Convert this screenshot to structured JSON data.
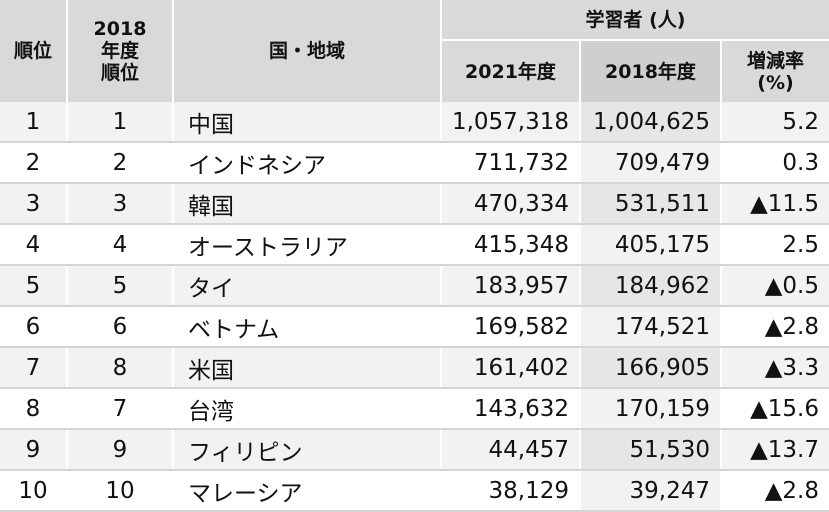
{
  "header": {
    "rank": "順位",
    "rank_2018_line1": "2018",
    "rank_2018_line2": "年度",
    "rank_2018_line3": "順位",
    "country": "国・地域",
    "learners": "学習者 (人)",
    "year_2021": "2021年度",
    "year_2018": "2018年度",
    "change_line1": "増減率",
    "change_line2": "(%)"
  },
  "rows": [
    {
      "rank": "1",
      "rank2018": "1",
      "country": "中国",
      "y2021": "1,057,318",
      "y2018": "1,004,625",
      "change": "5.2"
    },
    {
      "rank": "2",
      "rank2018": "2",
      "country": "インドネシア",
      "y2021": "711,732",
      "y2018": "709,479",
      "change": "0.3"
    },
    {
      "rank": "3",
      "rank2018": "3",
      "country": "韓国",
      "y2021": "470,334",
      "y2018": "531,511",
      "change": "▲11.5"
    },
    {
      "rank": "4",
      "rank2018": "4",
      "country": "オーストラリア",
      "y2021": "415,348",
      "y2018": "405,175",
      "change": "2.5"
    },
    {
      "rank": "5",
      "rank2018": "5",
      "country": "タイ",
      "y2021": "183,957",
      "y2018": "184,962",
      "change": "▲0.5"
    },
    {
      "rank": "6",
      "rank2018": "6",
      "country": "ベトナム",
      "y2021": "169,582",
      "y2018": "174,521",
      "change": "▲2.8"
    },
    {
      "rank": "7",
      "rank2018": "8",
      "country": "米国",
      "y2021": "161,402",
      "y2018": "166,905",
      "change": "▲3.3"
    },
    {
      "rank": "8",
      "rank2018": "7",
      "country": "台湾",
      "y2021": "143,632",
      "y2018": "170,159",
      "change": "▲15.6"
    },
    {
      "rank": "9",
      "rank2018": "9",
      "country": "フィリピン",
      "y2021": "44,457",
      "y2018": "51,530",
      "change": "▲13.7"
    },
    {
      "rank": "10",
      "rank2018": "10",
      "country": "マレーシア",
      "y2021": "38,129",
      "y2018": "39,247",
      "change": "▲2.8"
    }
  ]
}
